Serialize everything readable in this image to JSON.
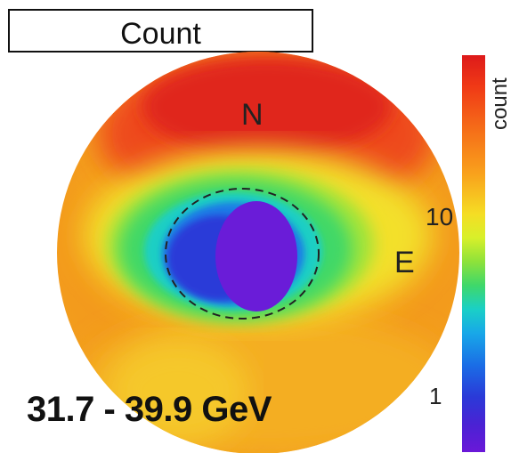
{
  "chart_data": {
    "type": "heatmap",
    "title": "Count",
    "energy_range": "31.7 - 39.9 GeV",
    "direction_labels": [
      "N",
      "E"
    ],
    "colorbar": {
      "label": "count",
      "scale": "log",
      "ticks": [
        "10",
        "1"
      ]
    },
    "colors": {
      "high": "#dd1a1a",
      "mid": "#f5dd24",
      "green": "#3fd86a",
      "cyan": "#1ad0c6",
      "low": "#6a18d8"
    }
  }
}
